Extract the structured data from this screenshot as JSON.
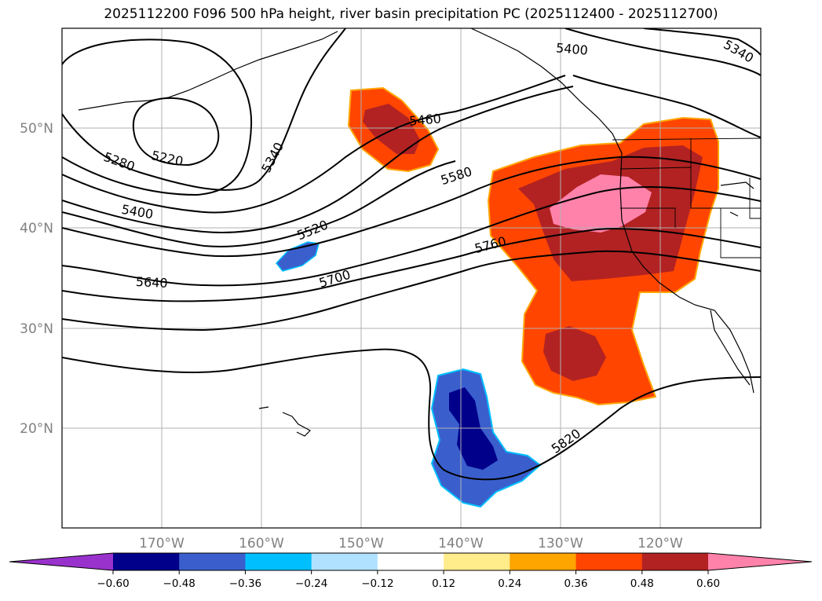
{
  "title": "2025112200 F096 500 hPa height, river basin precipitation PC (2025112400 - 2025112700)",
  "map": {
    "projection": "equirectangular",
    "lon_range": [
      -180,
      -110
    ],
    "lat_range": [
      10,
      60
    ],
    "grid": true,
    "lat_labels": [
      "50°N",
      "40°N",
      "30°N",
      "20°N"
    ],
    "lon_labels": [
      "170°W",
      "160°W",
      "150°W",
      "140°W",
      "130°W",
      "120°W"
    ],
    "contour_labels": [
      "5220",
      "5280",
      "5340",
      "5400",
      "5400",
      "5340",
      "5460",
      "5520",
      "5580",
      "5640",
      "5700",
      "5760",
      "5820"
    ]
  },
  "colorbar": {
    "ticks": [
      "−0.60",
      "−0.48",
      "−0.36",
      "−0.24",
      "−0.12",
      "0.12",
      "0.24",
      "0.36",
      "0.48",
      "0.60"
    ],
    "colors": [
      "#9932cc",
      "#00008b",
      "#3a5fcd",
      "#00bfff",
      "#b0e2ff",
      "#ffffff",
      "#ffec8b",
      "#ffa500",
      "#ff4500",
      "#b22222",
      "#ff82ab"
    ]
  }
}
